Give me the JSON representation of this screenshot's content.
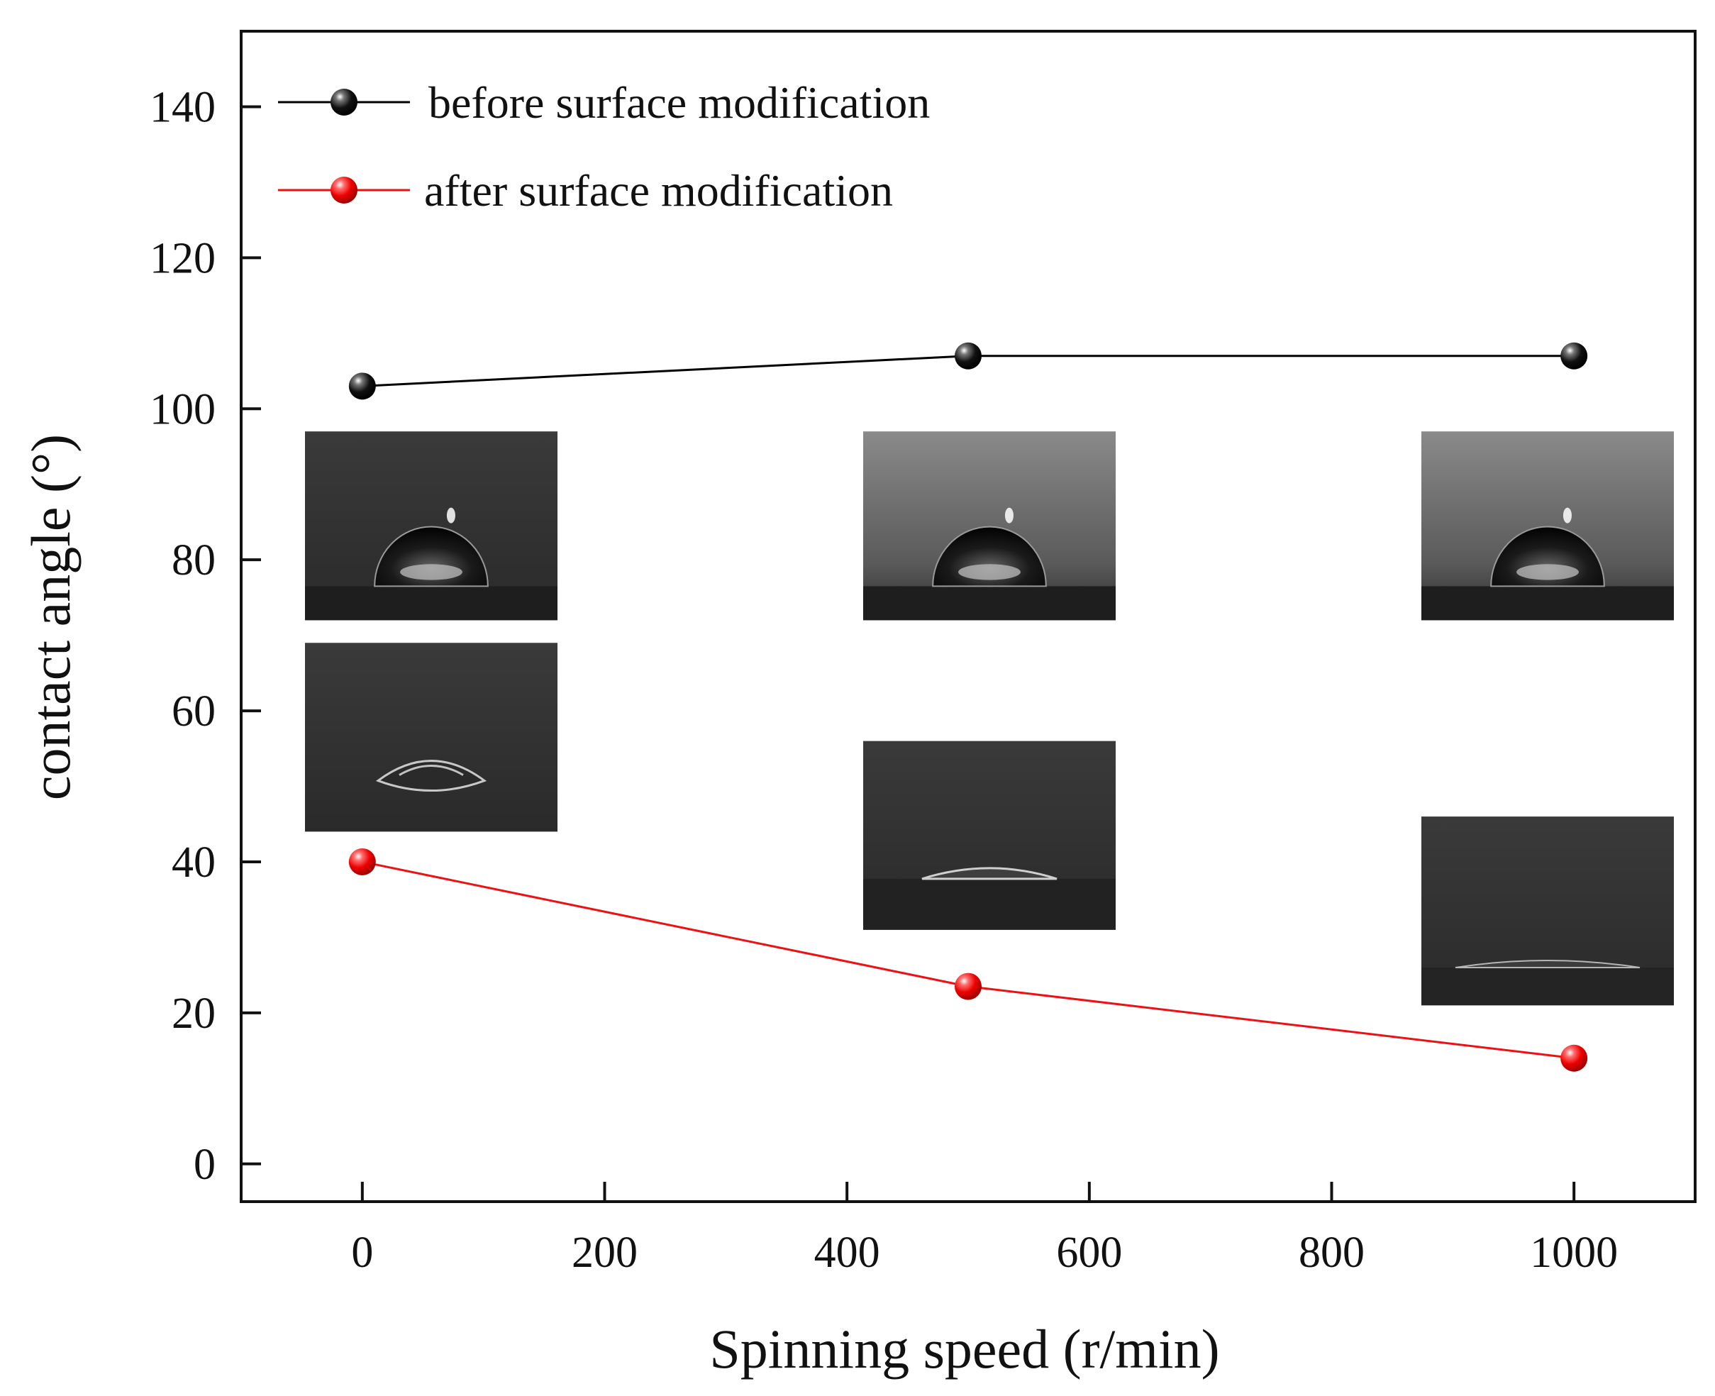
{
  "chart_data": {
    "type": "line",
    "title": "",
    "xlabel": "Spinning speed (r/min)",
    "ylabel": "contact angle (°)",
    "xlim": [
      -100,
      1100
    ],
    "ylim": [
      -5,
      150
    ],
    "xticks": [
      0,
      200,
      400,
      600,
      800,
      1000
    ],
    "yticks": [
      0,
      20,
      40,
      60,
      80,
      100,
      120,
      140
    ],
    "grid": false,
    "legend_position": "top-left",
    "series": [
      {
        "name": "before surface modification",
        "color": "#000000",
        "x": [
          0,
          500,
          1000
        ],
        "y": [
          103,
          107,
          107
        ]
      },
      {
        "name": "after surface modification",
        "color": "#ee1111",
        "x": [
          0,
          500,
          1000
        ],
        "y": [
          40,
          23.5,
          14
        ]
      }
    ],
    "inset_images": [
      {
        "description": "droplet photo",
        "series": "before surface modification",
        "x": 0,
        "y_top": 97,
        "y_bottom": 72,
        "shape": "round-high"
      },
      {
        "description": "droplet photo",
        "series": "before surface modification",
        "x": 500,
        "y_top": 97,
        "y_bottom": 72,
        "shape": "round-high"
      },
      {
        "description": "droplet photo",
        "series": "before surface modification",
        "x": 1000,
        "y_top": 97,
        "y_bottom": 72,
        "shape": "round-high"
      },
      {
        "description": "droplet photo",
        "series": "after surface modification",
        "x": 0,
        "y_top": 69,
        "y_bottom": 44,
        "shape": "lens"
      },
      {
        "description": "droplet photo",
        "series": "after surface modification",
        "x": 500,
        "y_top": 56,
        "y_bottom": 31,
        "shape": "flat"
      },
      {
        "description": "droplet photo",
        "series": "after surface modification",
        "x": 1000,
        "y_top": 46,
        "y_bottom": 21,
        "shape": "very-flat"
      }
    ]
  }
}
